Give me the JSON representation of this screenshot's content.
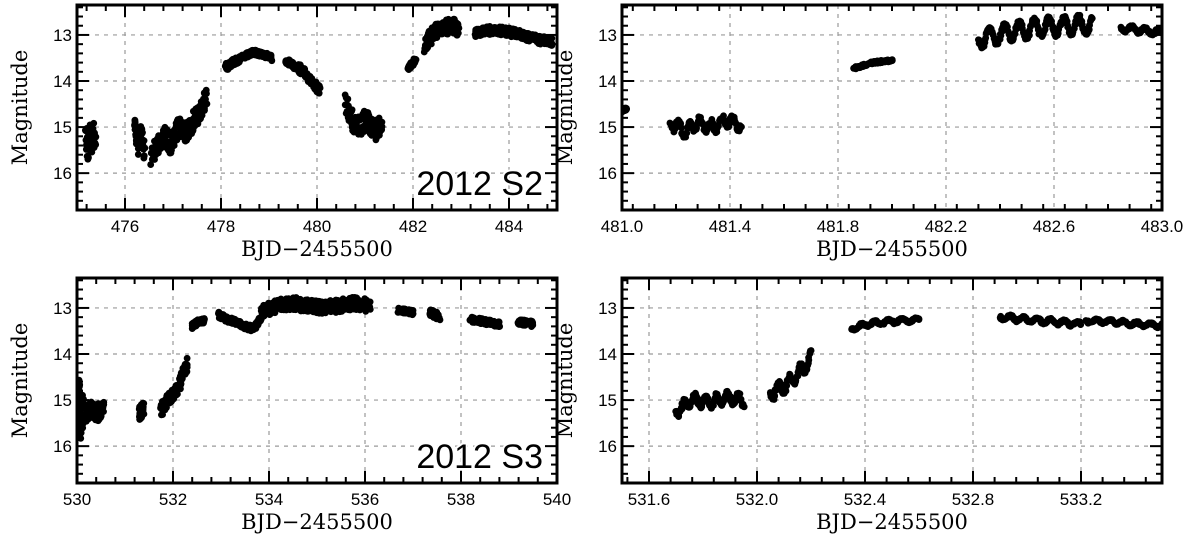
{
  "chart_data": [
    {
      "id": "top-left",
      "type": "scatter",
      "xlabel": "BJD−2455500",
      "ylabel": "Magnitude",
      "xlim": [
        475.0,
        485.0
      ],
      "ylim": [
        16.8,
        12.35
      ],
      "y_inverted": true,
      "xticks": [
        "476",
        "478",
        "480",
        "482",
        "484"
      ],
      "xtick_values": [
        476,
        478,
        480,
        482,
        484
      ],
      "yticks": [
        "13",
        "14",
        "15",
        "16"
      ],
      "ytick_values": [
        13,
        14,
        15,
        16
      ],
      "annotation": "2012 S2",
      "grid": true,
      "marker_color": "#000000",
      "segments": [
        {
          "x0": 475.18,
          "x1": 475.38,
          "y": [
            15.0,
            15.6,
            14.9,
            15.5,
            15.1,
            15.4
          ],
          "spread": 0.45
        },
        {
          "x0": 476.2,
          "x1": 476.4,
          "y": [
            15.0,
            15.4,
            15.1,
            15.5
          ],
          "spread": 0.45
        },
        {
          "x0": 476.55,
          "x1": 477.7,
          "y": [
            15.6,
            15.4,
            15.2,
            15.4,
            15.0,
            15.1,
            14.9,
            14.7,
            14.3
          ],
          "spread": 0.45
        },
        {
          "x0": 478.1,
          "x1": 478.35,
          "y": [
            13.7,
            13.6,
            13.55
          ],
          "spread": 0.15
        },
        {
          "x0": 478.35,
          "x1": 479.05,
          "y": [
            13.55,
            13.45,
            13.38,
            13.42,
            13.5
          ],
          "spread": 0.12
        },
        {
          "x0": 479.35,
          "x1": 479.55,
          "y": [
            13.55,
            13.7
          ],
          "spread": 0.12
        },
        {
          "x0": 479.6,
          "x1": 480.05,
          "y": [
            13.7,
            13.85,
            14.0,
            14.2
          ],
          "spread": 0.2
        },
        {
          "x0": 480.6,
          "x1": 481.35,
          "y": [
            14.5,
            14.9,
            15.0,
            14.8,
            15.1,
            14.9
          ],
          "spread": 0.45
        },
        {
          "x0": 481.9,
          "x1": 482.05,
          "y": [
            13.72,
            13.55
          ],
          "spread": 0.1
        },
        {
          "x0": 482.25,
          "x1": 482.95,
          "y": [
            13.2,
            12.95,
            12.85,
            12.8,
            12.85
          ],
          "spread": 0.35
        },
        {
          "x0": 483.3,
          "x1": 484.9,
          "y": [
            12.95,
            12.9,
            12.92,
            13.0,
            13.1,
            13.15
          ],
          "spread": 0.18
        }
      ]
    },
    {
      "id": "top-right",
      "type": "scatter",
      "xlabel": "BJD−2455500",
      "ylabel": "Magnitude",
      "xlim": [
        481.0,
        483.0
      ],
      "ylim": [
        16.8,
        12.35
      ],
      "y_inverted": true,
      "xticks": [
        "481.0",
        "481.4",
        "481.8",
        "482.2",
        "482.6",
        "483.0"
      ],
      "xtick_values": [
        481.0,
        481.4,
        481.8,
        482.2,
        482.6,
        483.0
      ],
      "yticks": [
        "13",
        "14",
        "15",
        "16"
      ],
      "ytick_values": [
        13,
        14,
        15,
        16
      ],
      "annotation": "",
      "grid": true,
      "marker_color": "#000000",
      "segments": [
        {
          "x0": 481.0,
          "x1": 481.015,
          "y": [
            14.65,
            14.6
          ],
          "spread": 0.05
        },
        {
          "x0": 481.18,
          "x1": 481.44,
          "y": [
            14.9,
            15.1,
            14.9,
            15.0,
            14.85,
            14.95
          ],
          "spread": 0.1,
          "wave_amp": 0.12,
          "wave_period": 0.04
        },
        {
          "x0": 481.86,
          "x1": 482.0,
          "y": [
            13.72,
            13.6,
            13.55
          ],
          "spread": 0.05
        },
        {
          "x0": 482.32,
          "x1": 482.74,
          "y": [
            13.1,
            12.95,
            12.85,
            12.8,
            12.78
          ],
          "spread": 0.05,
          "wave_amp": 0.2,
          "wave_period": 0.055
        },
        {
          "x0": 482.85,
          "x1": 483.0,
          "y": [
            12.85,
            12.9,
            12.95
          ],
          "spread": 0.05,
          "wave_amp": 0.06,
          "wave_period": 0.05
        }
      ]
    },
    {
      "id": "bottom-left",
      "type": "scatter",
      "xlabel": "BJD−2455500",
      "ylabel": "Magnitude",
      "xlim": [
        530.0,
        540.0
      ],
      "ylim": [
        16.8,
        12.35
      ],
      "y_inverted": true,
      "xticks": [
        "530",
        "532",
        "534",
        "536",
        "538",
        "540"
      ],
      "xtick_values": [
        530,
        532,
        534,
        536,
        538,
        540
      ],
      "yticks": [
        "13",
        "14",
        "15",
        "16"
      ],
      "ytick_values": [
        13,
        14,
        15,
        16
      ],
      "annotation": "2012 S3",
      "grid": true,
      "marker_color": "#000000",
      "segments": [
        {
          "x0": 530.0,
          "x1": 530.12,
          "y": [
            15.2,
            14.8,
            15.5,
            15.2
          ],
          "spread": 0.8
        },
        {
          "x0": 530.15,
          "x1": 530.55,
          "y": [
            15.3,
            15.2,
            15.3,
            15.1
          ],
          "spread": 0.4
        },
        {
          "x0": 531.3,
          "x1": 531.38,
          "y": [
            15.3,
            15.2
          ],
          "spread": 0.3
        },
        {
          "x0": 531.75,
          "x1": 532.3,
          "y": [
            15.2,
            15.0,
            14.9,
            14.6,
            14.2
          ],
          "spread": 0.3
        },
        {
          "x0": 532.4,
          "x1": 532.65,
          "y": [
            13.4,
            13.3,
            13.28
          ],
          "spread": 0.1
        },
        {
          "x0": 532.95,
          "x1": 533.85,
          "y": [
            13.15,
            13.25,
            13.3,
            13.4,
            13.45,
            13.2
          ],
          "spread": 0.12
        },
        {
          "x0": 533.85,
          "x1": 536.1,
          "y": [
            13.1,
            12.95,
            12.9,
            12.95,
            13.0,
            12.95,
            12.9,
            12.95
          ],
          "spread": 0.28
        },
        {
          "x0": 536.7,
          "x1": 537.0,
          "y": [
            13.05,
            13.1
          ],
          "spread": 0.1
        },
        {
          "x0": 537.35,
          "x1": 537.55,
          "y": [
            13.1,
            13.2
          ],
          "spread": 0.15
        },
        {
          "x0": 538.2,
          "x1": 538.8,
          "y": [
            13.25,
            13.3,
            13.35
          ],
          "spread": 0.12
        },
        {
          "x0": 539.2,
          "x1": 539.5,
          "y": [
            13.3,
            13.35
          ],
          "spread": 0.12
        }
      ]
    },
    {
      "id": "bottom-right",
      "type": "scatter",
      "xlabel": "BJD−2455500",
      "ylabel": "Magnitude",
      "xlim": [
        531.5,
        533.5
      ],
      "ylim": [
        16.8,
        12.35
      ],
      "y_inverted": true,
      "xticks": [
        "531.6",
        "532.0",
        "532.4",
        "532.8",
        "533.2"
      ],
      "xtick_values": [
        531.6,
        532.0,
        532.4,
        532.8,
        533.2
      ],
      "yticks": [
        "13",
        "14",
        "15",
        "16"
      ],
      "ytick_values": [
        13,
        14,
        15,
        16
      ],
      "annotation": "",
      "grid": true,
      "marker_color": "#000000",
      "segments": [
        {
          "x0": 531.7,
          "x1": 531.95,
          "y": [
            15.25,
            15.0,
            15.05,
            14.95,
            15.0
          ],
          "spread": 0.06,
          "wave_amp": 0.13,
          "wave_period": 0.04
        },
        {
          "x0": 532.05,
          "x1": 532.2,
          "y": [
            14.85,
            14.7,
            14.45,
            14.1
          ],
          "spread": 0.06,
          "wave_amp": 0.15,
          "wave_period": 0.04
        },
        {
          "x0": 532.35,
          "x1": 532.6,
          "y": [
            13.45,
            13.35,
            13.3,
            13.28,
            13.25
          ],
          "spread": 0.04,
          "wave_amp": 0.04,
          "wave_period": 0.05
        },
        {
          "x0": 532.9,
          "x1": 533.2,
          "y": [
            13.2,
            13.25,
            13.3,
            13.35
          ],
          "spread": 0.04,
          "wave_amp": 0.05,
          "wave_period": 0.05
        },
        {
          "x0": 533.22,
          "x1": 533.5,
          "y": [
            13.28,
            13.3,
            13.35,
            13.38
          ],
          "spread": 0.04,
          "wave_amp": 0.04,
          "wave_period": 0.05
        }
      ]
    }
  ]
}
